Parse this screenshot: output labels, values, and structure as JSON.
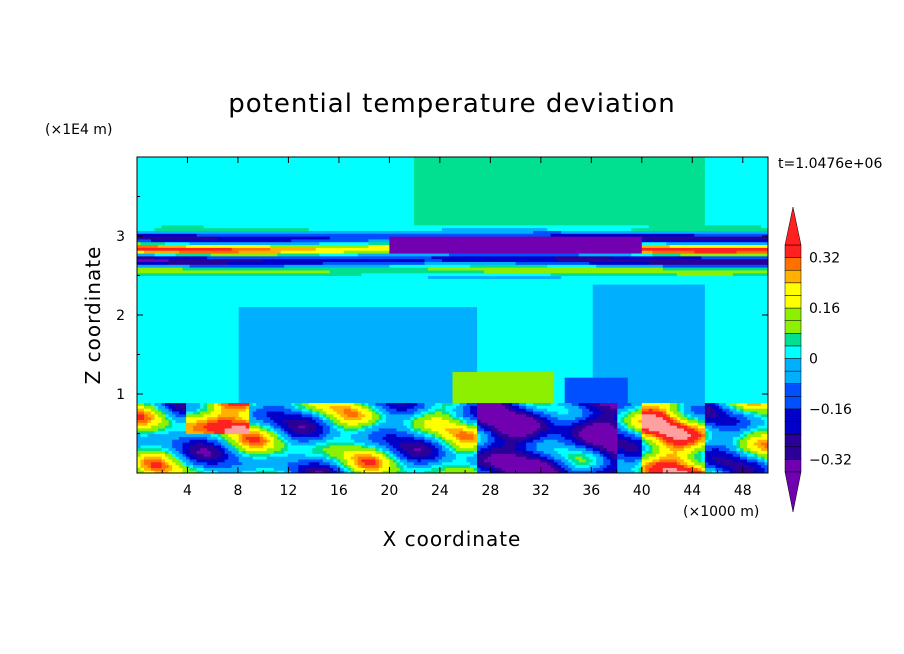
{
  "chart_data": {
    "type": "heatmap",
    "title": "potential temperature deviation",
    "xlabel": "X coordinate",
    "ylabel": "Z coordinate",
    "x_unit": "(×1000 m)",
    "y_unit": "(×1E4 m)",
    "time_label": "t=1.0476e+06",
    "xlim": [
      0,
      50
    ],
    "ylim": [
      0,
      4
    ],
    "x_ticks": [
      4,
      8,
      12,
      16,
      20,
      24,
      28,
      32,
      36,
      40,
      44,
      48
    ],
    "x_tick_labels": [
      "4",
      "8",
      "12",
      "16",
      "20",
      "24",
      "28",
      "32",
      "36",
      "40",
      "44",
      "48"
    ],
    "y_ticks": [
      1,
      2,
      3
    ],
    "y_tick_labels": [
      "1",
      "2",
      "3"
    ],
    "colorbar": {
      "levels": [
        -0.4,
        -0.36,
        -0.32,
        -0.28,
        -0.24,
        -0.2,
        -0.16,
        -0.12,
        -0.08,
        -0.04,
        0,
        0.04,
        0.08,
        0.12,
        0.16,
        0.2,
        0.24,
        0.28,
        0.32,
        0.36,
        0.4
      ],
      "labels": [
        {
          "value": -0.32,
          "text": "−0.32"
        },
        {
          "value": -0.16,
          "text": "−0.16"
        },
        {
          "value": 0,
          "text": "0"
        },
        {
          "value": 0.16,
          "text": "0.16"
        },
        {
          "value": 0.32,
          "text": "0.32"
        }
      ],
      "colors": [
        "#7000b0",
        "#2a0098",
        "#0000c8",
        "#0050ff",
        "#00b0ff",
        "#00ffff",
        "#00e090",
        "#8cf000",
        "#ffff00",
        "#ffb000",
        "#ff7000",
        "#ff2020",
        "#ffa0a0"
      ],
      "bin_edges": [
        -0.4,
        -0.32,
        -0.24,
        -0.16,
        -0.08,
        0,
        0.04,
        0.08,
        0.16,
        0.24,
        0.28,
        0.32,
        0.4
      ]
    },
    "regions": {
      "upper_layer": {
        "z_range": [
          2.5,
          3.15
        ],
        "description_values": [
          -0.32,
          0.32
        ]
      },
      "middle_layer": {
        "z_range": [
          0.88,
          2.5
        ],
        "dominant_value": 0
      },
      "lower_layer": {
        "z_range": [
          0,
          0.88
        ],
        "value_range": [
          -0.4,
          0.4
        ]
      }
    }
  }
}
